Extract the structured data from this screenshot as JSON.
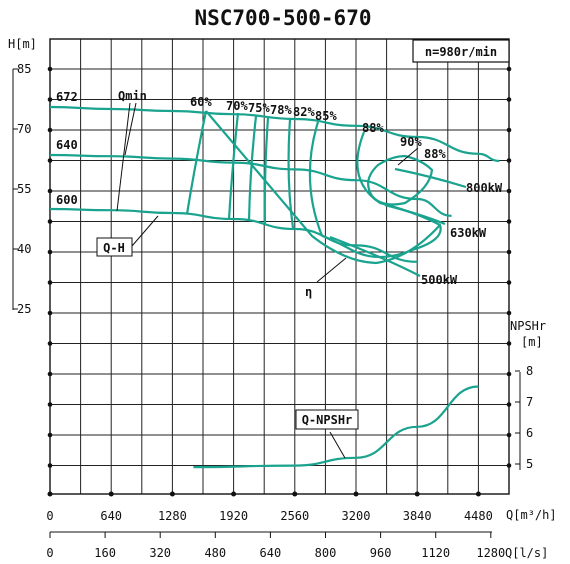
{
  "chart_data": {
    "type": "line",
    "title": "NSC700-500-670",
    "speed_label": "n=980r/min",
    "head_axis": {
      "label": "H[m]",
      "ticks": [
        "85",
        "70",
        "55",
        "40",
        "25"
      ]
    },
    "npsh_axis": {
      "label": "NPSHr",
      "unit": "[m]",
      "ticks": [
        "8",
        "7",
        "6",
        "5"
      ]
    },
    "x_axis_m3h": {
      "label": "Q[m³/h]",
      "ticks": [
        "0",
        "640",
        "1280",
        "1920",
        "2560",
        "3200",
        "3840",
        "4480"
      ]
    },
    "x_axis_ls": {
      "label": "Q[l/s]",
      "ticks": [
        "0",
        "160",
        "320",
        "480",
        "640",
        "800",
        "960",
        "1120",
        "1280"
      ]
    },
    "series": [
      {
        "name": "672",
        "x": [
          0,
          640,
          1280,
          1920,
          2560,
          3200,
          3840,
          4480,
          4700
        ],
        "y": [
          75.5,
          75.0,
          74.5,
          73.7,
          72.5,
          70.8,
          68.0,
          63.8,
          62.0
        ]
      },
      {
        "name": "640",
        "x": [
          0,
          640,
          1280,
          1920,
          2560,
          3200,
          3840,
          4200
        ],
        "y": [
          63.5,
          63.2,
          62.6,
          61.6,
          59.9,
          57.2,
          52.5,
          48.3
        ]
      },
      {
        "name": "600",
        "x": [
          0,
          640,
          1280,
          1920,
          2560,
          3200,
          3840
        ],
        "y": [
          50.0,
          49.7,
          49.0,
          47.5,
          45.0,
          40.9,
          36.8
        ]
      },
      {
        "name": "NPSHr",
        "x": [
          1500,
          2560,
          3200,
          3840,
          4480
        ],
        "y": [
          4.9,
          4.95,
          5.2,
          6.2,
          7.5
        ]
      }
    ],
    "annotations": [
      "Qmin",
      "60%",
      "70%",
      "75%",
      "78%",
      "82%",
      "85%",
      "88%",
      "90%",
      "88%",
      "800kW",
      "630kW",
      "500kW",
      "Q-H",
      "η",
      "Q-NPSHr"
    ]
  }
}
